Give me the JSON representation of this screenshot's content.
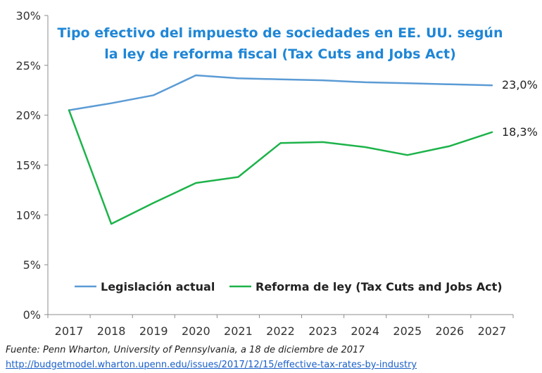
{
  "chart_data": {
    "type": "line",
    "title": "Tipo efectivo del impuesto de sociedades en EE. UU. según la ley de reforma fiscal (Tax Cuts and Jobs Act)",
    "title_lines": [
      "Tipo efectivo del impuesto de sociedades en EE. UU. según",
      "la ley de reforma fiscal (Tax Cuts and Jobs Act)"
    ],
    "x": [
      "2017",
      "2018",
      "2019",
      "2020",
      "2021",
      "2022",
      "2023",
      "2024",
      "2025",
      "2026",
      "2027"
    ],
    "y_ticks": [
      "0%",
      "5%",
      "10%",
      "15%",
      "20%",
      "25%",
      "30%"
    ],
    "ylim": [
      0,
      30
    ],
    "xlabel": "",
    "ylabel": "",
    "grid": false,
    "legend_position": "bottom-center",
    "series": [
      {
        "name": "Legislación actual",
        "color": "#5b9bd5",
        "values": [
          20.5,
          21.2,
          22.0,
          24.0,
          23.7,
          23.6,
          23.5,
          23.3,
          23.2,
          23.1,
          23.0
        ],
        "end_label": "23,0%"
      },
      {
        "name": "Reforma de ley (Tax Cuts and Jobs Act)",
        "color": "#1db34a",
        "values": [
          20.5,
          9.1,
          11.2,
          13.2,
          13.8,
          17.2,
          17.3,
          16.8,
          16.0,
          16.9,
          18.3
        ],
        "end_label": "18,3%"
      }
    ]
  },
  "source": {
    "text": "Fuente: Penn Wharton, University of Pennsylvania, a 18 de diciembre de 2017",
    "link": "http://budgetmodel.wharton.upenn.edu/issues/2017/12/15/effective-tax-rates-by-industry"
  }
}
